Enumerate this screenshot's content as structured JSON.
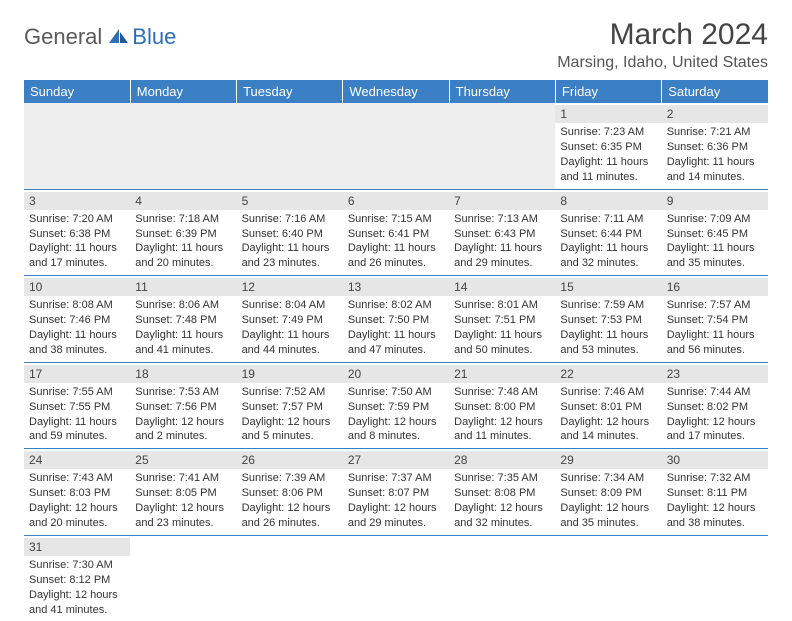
{
  "logo": {
    "text1": "General",
    "text2": "Blue",
    "color1": "#5a5a5a",
    "color2": "#2e6fb5"
  },
  "title": "March 2024",
  "location": "Marsing, Idaho, United States",
  "days_of_week": [
    "Sunday",
    "Monday",
    "Tuesday",
    "Wednesday",
    "Thursday",
    "Friday",
    "Saturday"
  ],
  "header_bg": "#3b7fc4",
  "cells": [
    {
      "day": "",
      "lines": []
    },
    {
      "day": "",
      "lines": []
    },
    {
      "day": "",
      "lines": []
    },
    {
      "day": "",
      "lines": []
    },
    {
      "day": "",
      "lines": []
    },
    {
      "day": "1",
      "lines": [
        "Sunrise: 7:23 AM",
        "Sunset: 6:35 PM",
        "Daylight: 11 hours and 11 minutes."
      ]
    },
    {
      "day": "2",
      "lines": [
        "Sunrise: 7:21 AM",
        "Sunset: 6:36 PM",
        "Daylight: 11 hours and 14 minutes."
      ]
    },
    {
      "day": "3",
      "lines": [
        "Sunrise: 7:20 AM",
        "Sunset: 6:38 PM",
        "Daylight: 11 hours and 17 minutes."
      ]
    },
    {
      "day": "4",
      "lines": [
        "Sunrise: 7:18 AM",
        "Sunset: 6:39 PM",
        "Daylight: 11 hours and 20 minutes."
      ]
    },
    {
      "day": "5",
      "lines": [
        "Sunrise: 7:16 AM",
        "Sunset: 6:40 PM",
        "Daylight: 11 hours and 23 minutes."
      ]
    },
    {
      "day": "6",
      "lines": [
        "Sunrise: 7:15 AM",
        "Sunset: 6:41 PM",
        "Daylight: 11 hours and 26 minutes."
      ]
    },
    {
      "day": "7",
      "lines": [
        "Sunrise: 7:13 AM",
        "Sunset: 6:43 PM",
        "Daylight: 11 hours and 29 minutes."
      ]
    },
    {
      "day": "8",
      "lines": [
        "Sunrise: 7:11 AM",
        "Sunset: 6:44 PM",
        "Daylight: 11 hours and 32 minutes."
      ]
    },
    {
      "day": "9",
      "lines": [
        "Sunrise: 7:09 AM",
        "Sunset: 6:45 PM",
        "Daylight: 11 hours and 35 minutes."
      ]
    },
    {
      "day": "10",
      "lines": [
        "Sunrise: 8:08 AM",
        "Sunset: 7:46 PM",
        "Daylight: 11 hours and 38 minutes."
      ]
    },
    {
      "day": "11",
      "lines": [
        "Sunrise: 8:06 AM",
        "Sunset: 7:48 PM",
        "Daylight: 11 hours and 41 minutes."
      ]
    },
    {
      "day": "12",
      "lines": [
        "Sunrise: 8:04 AM",
        "Sunset: 7:49 PM",
        "Daylight: 11 hours and 44 minutes."
      ]
    },
    {
      "day": "13",
      "lines": [
        "Sunrise: 8:02 AM",
        "Sunset: 7:50 PM",
        "Daylight: 11 hours and 47 minutes."
      ]
    },
    {
      "day": "14",
      "lines": [
        "Sunrise: 8:01 AM",
        "Sunset: 7:51 PM",
        "Daylight: 11 hours and 50 minutes."
      ]
    },
    {
      "day": "15",
      "lines": [
        "Sunrise: 7:59 AM",
        "Sunset: 7:53 PM",
        "Daylight: 11 hours and 53 minutes."
      ]
    },
    {
      "day": "16",
      "lines": [
        "Sunrise: 7:57 AM",
        "Sunset: 7:54 PM",
        "Daylight: 11 hours and 56 minutes."
      ]
    },
    {
      "day": "17",
      "lines": [
        "Sunrise: 7:55 AM",
        "Sunset: 7:55 PM",
        "Daylight: 11 hours and 59 minutes."
      ]
    },
    {
      "day": "18",
      "lines": [
        "Sunrise: 7:53 AM",
        "Sunset: 7:56 PM",
        "Daylight: 12 hours and 2 minutes."
      ]
    },
    {
      "day": "19",
      "lines": [
        "Sunrise: 7:52 AM",
        "Sunset: 7:57 PM",
        "Daylight: 12 hours and 5 minutes."
      ]
    },
    {
      "day": "20",
      "lines": [
        "Sunrise: 7:50 AM",
        "Sunset: 7:59 PM",
        "Daylight: 12 hours and 8 minutes."
      ]
    },
    {
      "day": "21",
      "lines": [
        "Sunrise: 7:48 AM",
        "Sunset: 8:00 PM",
        "Daylight: 12 hours and 11 minutes."
      ]
    },
    {
      "day": "22",
      "lines": [
        "Sunrise: 7:46 AM",
        "Sunset: 8:01 PM",
        "Daylight: 12 hours and 14 minutes."
      ]
    },
    {
      "day": "23",
      "lines": [
        "Sunrise: 7:44 AM",
        "Sunset: 8:02 PM",
        "Daylight: 12 hours and 17 minutes."
      ]
    },
    {
      "day": "24",
      "lines": [
        "Sunrise: 7:43 AM",
        "Sunset: 8:03 PM",
        "Daylight: 12 hours and 20 minutes."
      ]
    },
    {
      "day": "25",
      "lines": [
        "Sunrise: 7:41 AM",
        "Sunset: 8:05 PM",
        "Daylight: 12 hours and 23 minutes."
      ]
    },
    {
      "day": "26",
      "lines": [
        "Sunrise: 7:39 AM",
        "Sunset: 8:06 PM",
        "Daylight: 12 hours and 26 minutes."
      ]
    },
    {
      "day": "27",
      "lines": [
        "Sunrise: 7:37 AM",
        "Sunset: 8:07 PM",
        "Daylight: 12 hours and 29 minutes."
      ]
    },
    {
      "day": "28",
      "lines": [
        "Sunrise: 7:35 AM",
        "Sunset: 8:08 PM",
        "Daylight: 12 hours and 32 minutes."
      ]
    },
    {
      "day": "29",
      "lines": [
        "Sunrise: 7:34 AM",
        "Sunset: 8:09 PM",
        "Daylight: 12 hours and 35 minutes."
      ]
    },
    {
      "day": "30",
      "lines": [
        "Sunrise: 7:32 AM",
        "Sunset: 8:11 PM",
        "Daylight: 12 hours and 38 minutes."
      ]
    },
    {
      "day": "31",
      "lines": [
        "Sunrise: 7:30 AM",
        "Sunset: 8:12 PM",
        "Daylight: 12 hours and 41 minutes."
      ]
    },
    {
      "day": "",
      "lines": []
    },
    {
      "day": "",
      "lines": []
    },
    {
      "day": "",
      "lines": []
    },
    {
      "day": "",
      "lines": []
    },
    {
      "day": "",
      "lines": []
    },
    {
      "day": "",
      "lines": []
    }
  ]
}
